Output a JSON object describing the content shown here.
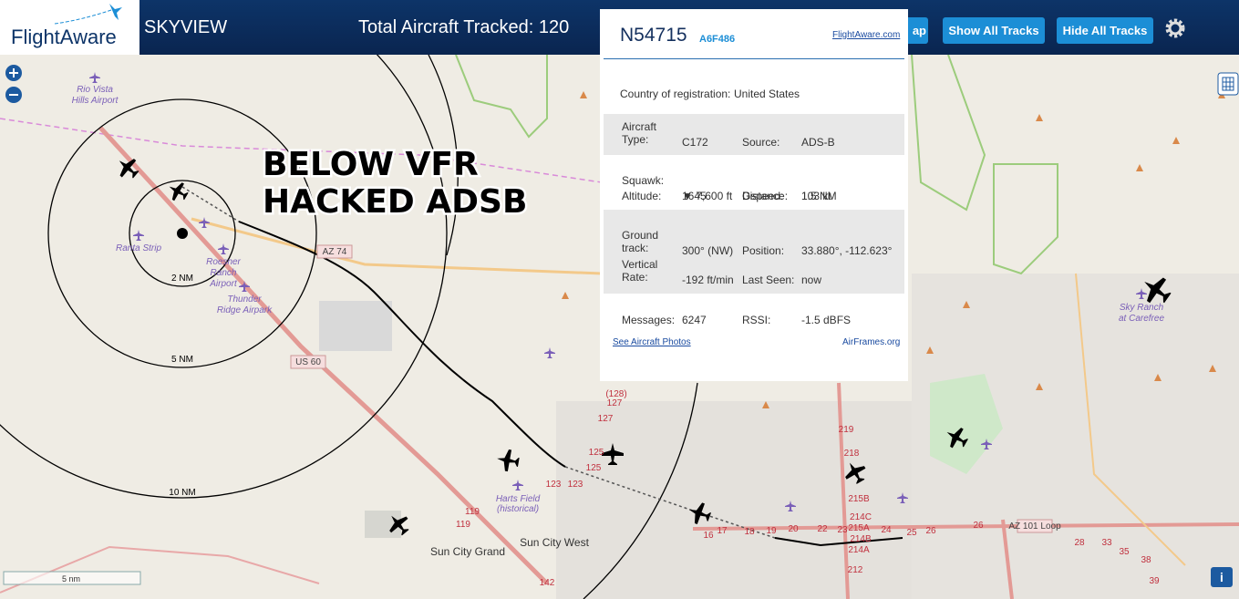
{
  "header": {
    "logo": "FlightAware",
    "title": "SKYVIEW",
    "tracked": "Total Aircraft Tracked: 120"
  },
  "buttons": [
    "ap",
    "Show All Tracks",
    "Hide All Tracks"
  ],
  "popup": {
    "ident": "N54715",
    "hex": "A6F486",
    "site_link": "FlightAware.com",
    "country_label": "Country of registration:",
    "country": "United States",
    "rows": [
      [
        "Aircraft Type:",
        "C172",
        "Source:",
        "ADS-B"
      ],
      [
        "Squawk:",
        "1645",
        "Gspeed:",
        "103 kt"
      ],
      [
        "Altitude:",
        "▼ 7,600 ft",
        "Distance:",
        "1.5 NM"
      ],
      [
        "Ground track:",
        "300° (NW)",
        "Position:",
        "33.880°, -112.623°"
      ],
      [
        "Vertical Rate:",
        "-192 ft/min",
        "Last Seen:",
        "now"
      ],
      [
        "Messages:",
        "6247",
        "RSSI:",
        "-1.5 dBFS"
      ]
    ],
    "photos_link": "See Aircraft Photos",
    "airframes_link": "AirFrames.org"
  },
  "map": {
    "annotation": [
      "BELOW VFR",
      "HACKED ADSB"
    ],
    "rings": [
      "2 NM",
      "5 NM",
      "10 NM"
    ],
    "labels": [
      "Rio Vista",
      "Hills Airport",
      "Ranta Strip",
      "Roesner",
      "Ranch",
      "Airport",
      "Thunder",
      "Ridge Airpark",
      "AZ 74",
      "US 60",
      "Harts Field",
      "(historical)",
      "Sun City Grand",
      "Sun City West",
      "Sky Ranch",
      "at Carefree",
      "AZ 101 Loop"
    ],
    "route_numbers": [
      "(128)",
      "127",
      "127",
      "125",
      "125",
      "123",
      "123",
      "119",
      "119",
      "142",
      "219",
      "218",
      "215B",
      "214C",
      "215A",
      "214B",
      "214A",
      "212",
      "16",
      "17",
      "18",
      "19",
      "20",
      "22",
      "23",
      "24",
      "25",
      "26",
      "26",
      "28",
      "33",
      "35",
      "38",
      "39"
    ],
    "scale": "5 nm",
    "info": "i"
  }
}
